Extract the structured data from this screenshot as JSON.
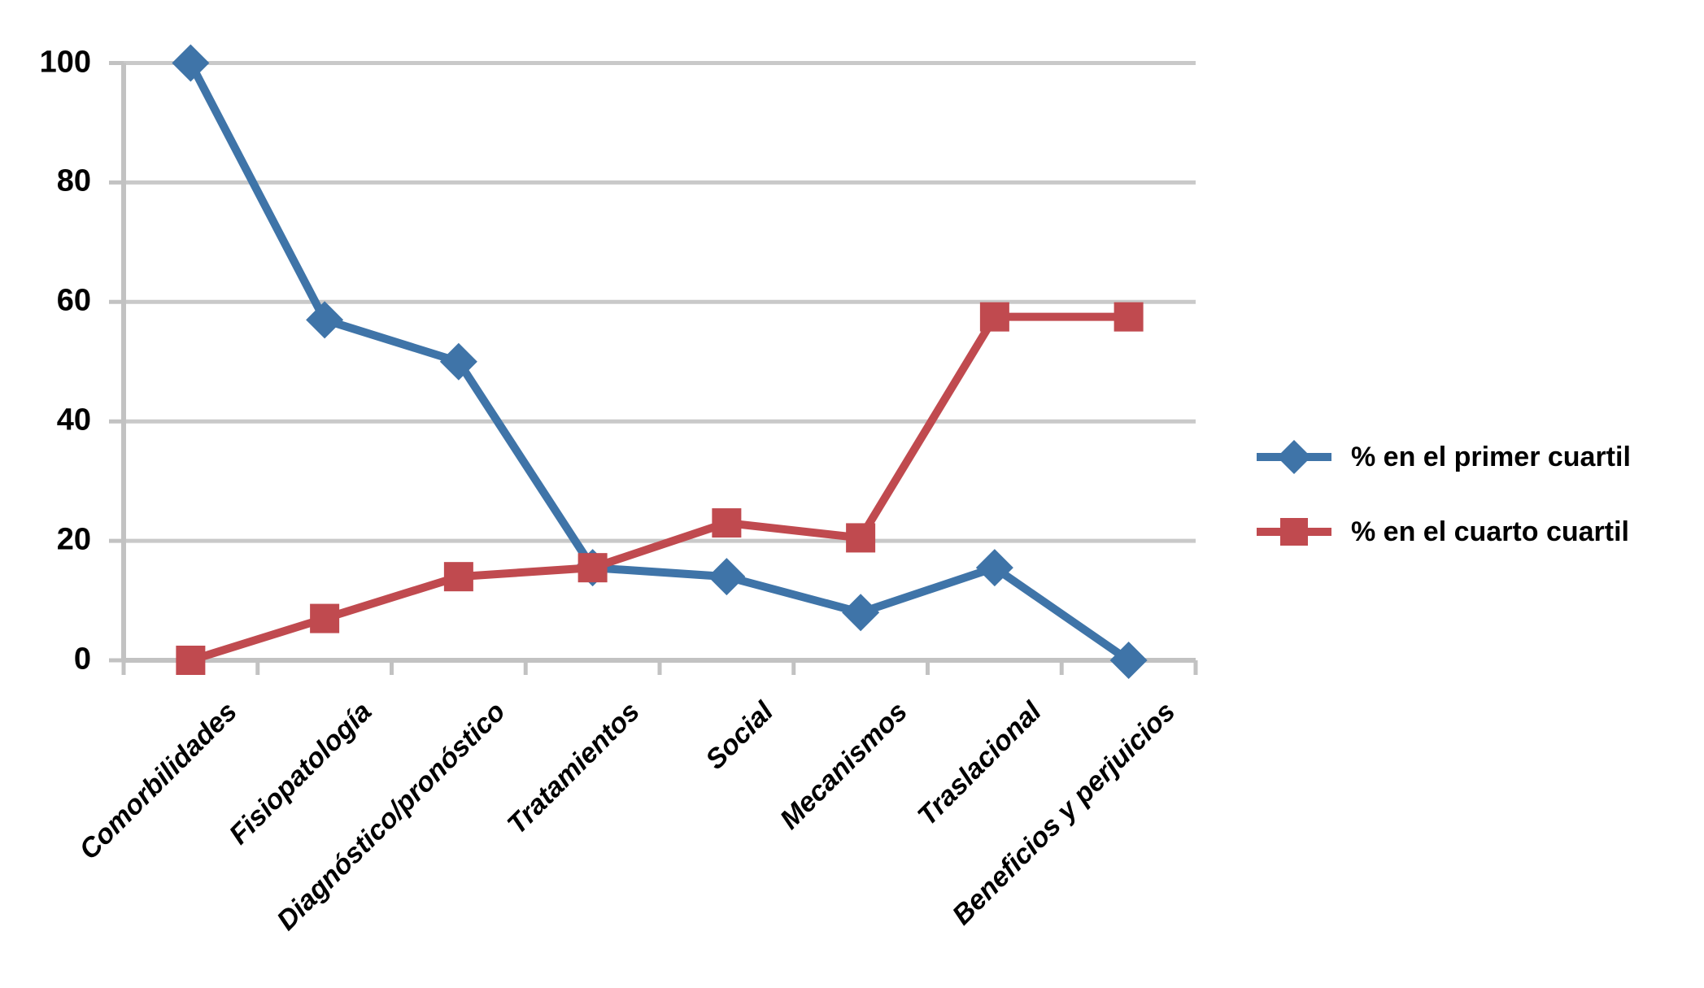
{
  "chart_data": {
    "type": "line",
    "title": "",
    "xlabel": "",
    "ylabel": "",
    "categories": [
      "Comorbilidades",
      "Fisiopatología",
      "Diagnóstico/pronóstico",
      "Tratamientos",
      "Social",
      "Mecanismos",
      "Traslacional",
      "Beneficios y perjuicios"
    ],
    "series": [
      {
        "name": "% en el primer cuartil",
        "marker": "diamond",
        "color": "#3F74A8",
        "values": [
          100,
          57,
          50,
          15.5,
          14,
          8,
          15.5,
          0
        ]
      },
      {
        "name": "% en el cuarto cuartil",
        "marker": "square",
        "color": "#C04A4F",
        "values": [
          0,
          7,
          14,
          15.5,
          23,
          20.5,
          57.5,
          57.5
        ]
      }
    ],
    "ylim": [
      0,
      100
    ],
    "yticks": [
      0,
      20,
      40,
      60,
      80,
      100
    ],
    "grid": true,
    "grid_color": "#C9C9C9",
    "axis_color": "#C2C2C2",
    "legend_position": "right"
  }
}
